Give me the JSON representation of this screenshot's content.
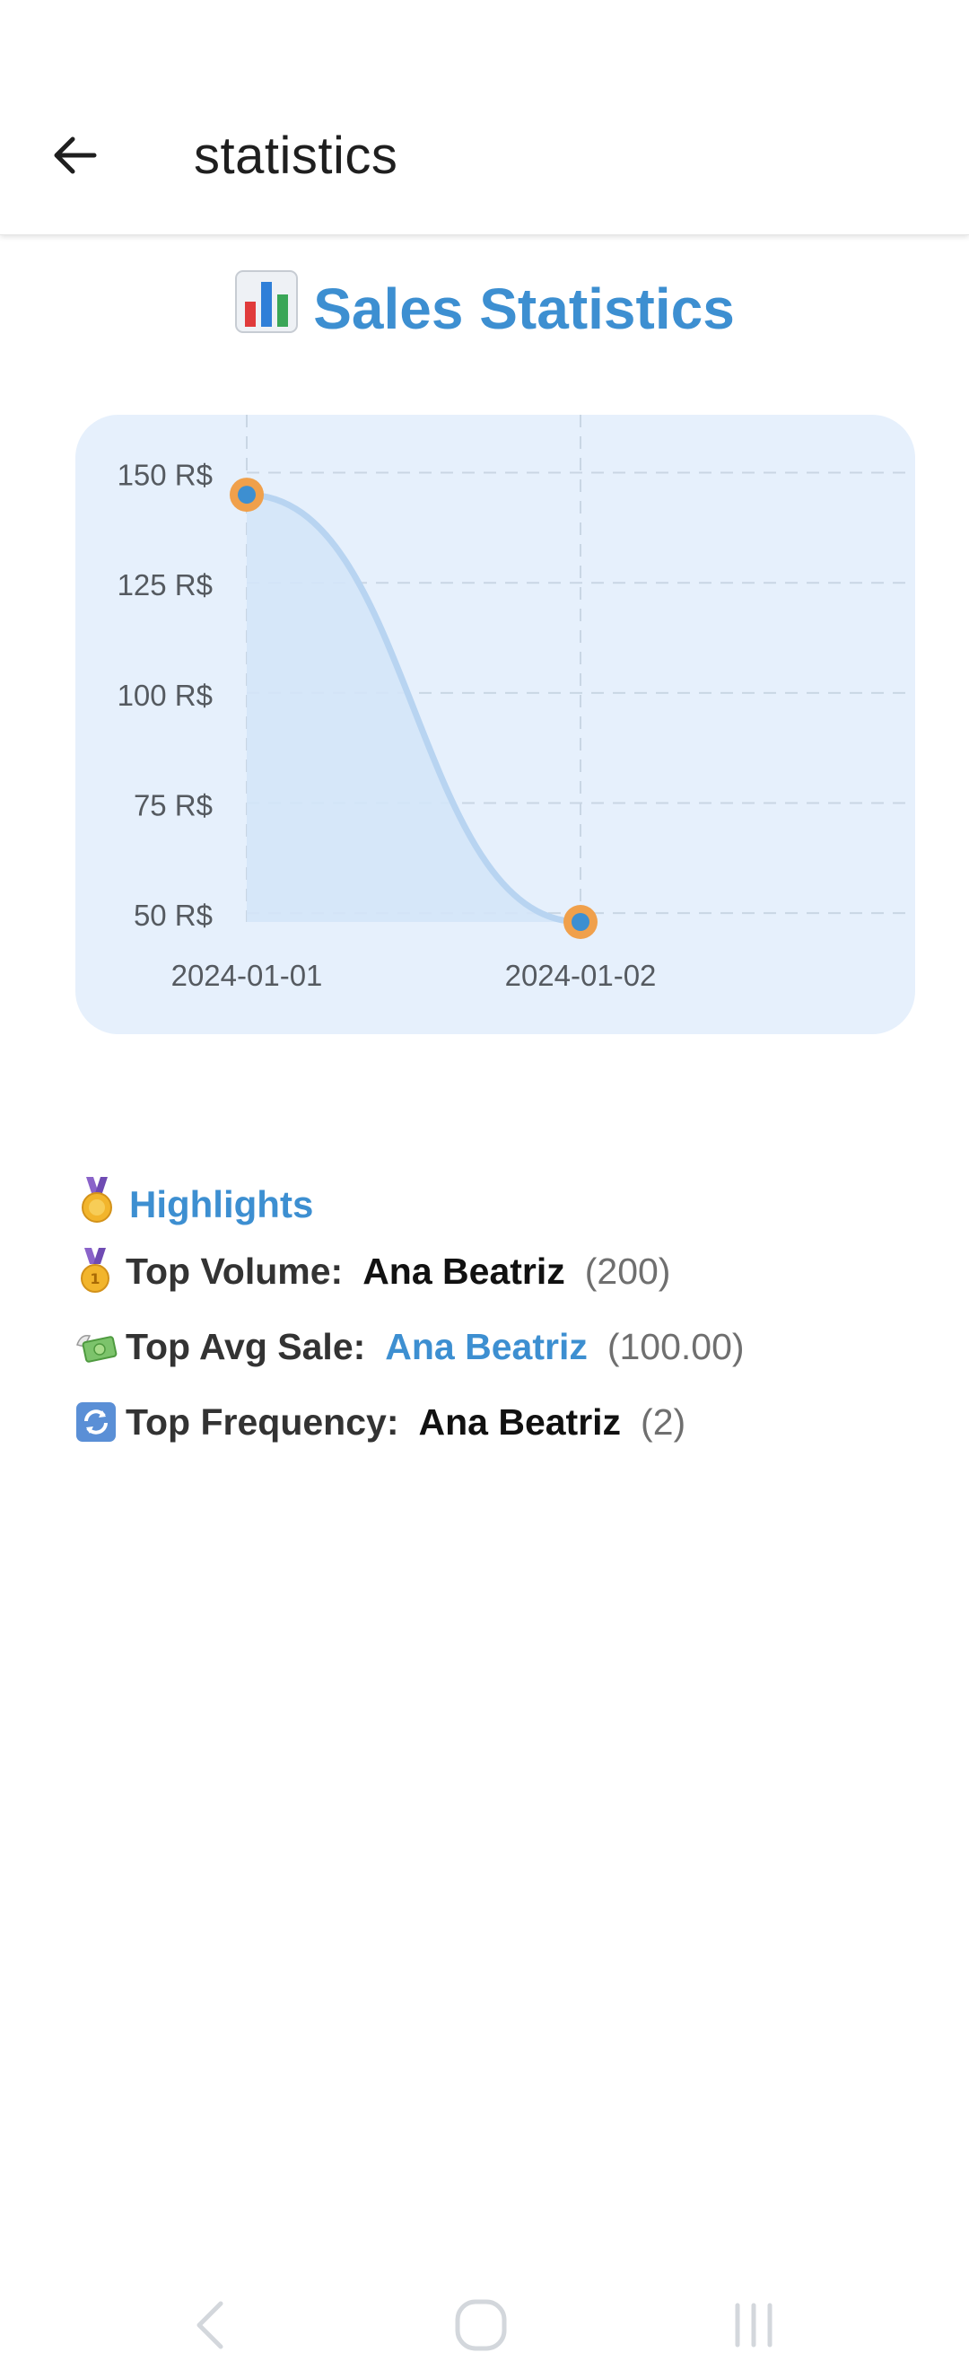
{
  "appbar": {
    "title": "statistics",
    "back_icon": "arrow-left-icon"
  },
  "page": {
    "heading": "Sales Statistics",
    "heading_icon": "bar-chart-icon"
  },
  "chart_data": {
    "type": "area",
    "x": [
      "2024-01-01",
      "2024-01-02"
    ],
    "series": [
      {
        "values": [
          145,
          48
        ]
      }
    ],
    "yticks": [
      50,
      75,
      100,
      125,
      150
    ],
    "ytick_labels": [
      "50 R$",
      "75 R$",
      "100 R$",
      "125 R$",
      "150 R$"
    ],
    "ylim": [
      48,
      155
    ],
    "grid": true,
    "colors": {
      "line": "#b8d4f1",
      "fill": "#d4e5f8",
      "point": "#3d8fd1",
      "point_ring": "#f0a04b",
      "card": "#e6f0fc"
    }
  },
  "highlights": {
    "heading": "Highlights",
    "heading_icon": "medal-icon",
    "items": [
      {
        "icon": "gold-medal-icon",
        "label": "Top Volume:",
        "name": "Ana Beatriz",
        "value": "(200)"
      },
      {
        "icon": "money-wings-icon",
        "label": "Top Avg Sale:",
        "name": "Ana Beatriz",
        "value": "(100.00)"
      },
      {
        "icon": "repeat-icon",
        "label": "Top Frequency:",
        "name": "Ana Beatriz",
        "value": "(2)"
      }
    ]
  },
  "navbar": {
    "back_icon": "nav-back-icon",
    "home_icon": "nav-home-icon",
    "recents_icon": "nav-recents-icon"
  }
}
